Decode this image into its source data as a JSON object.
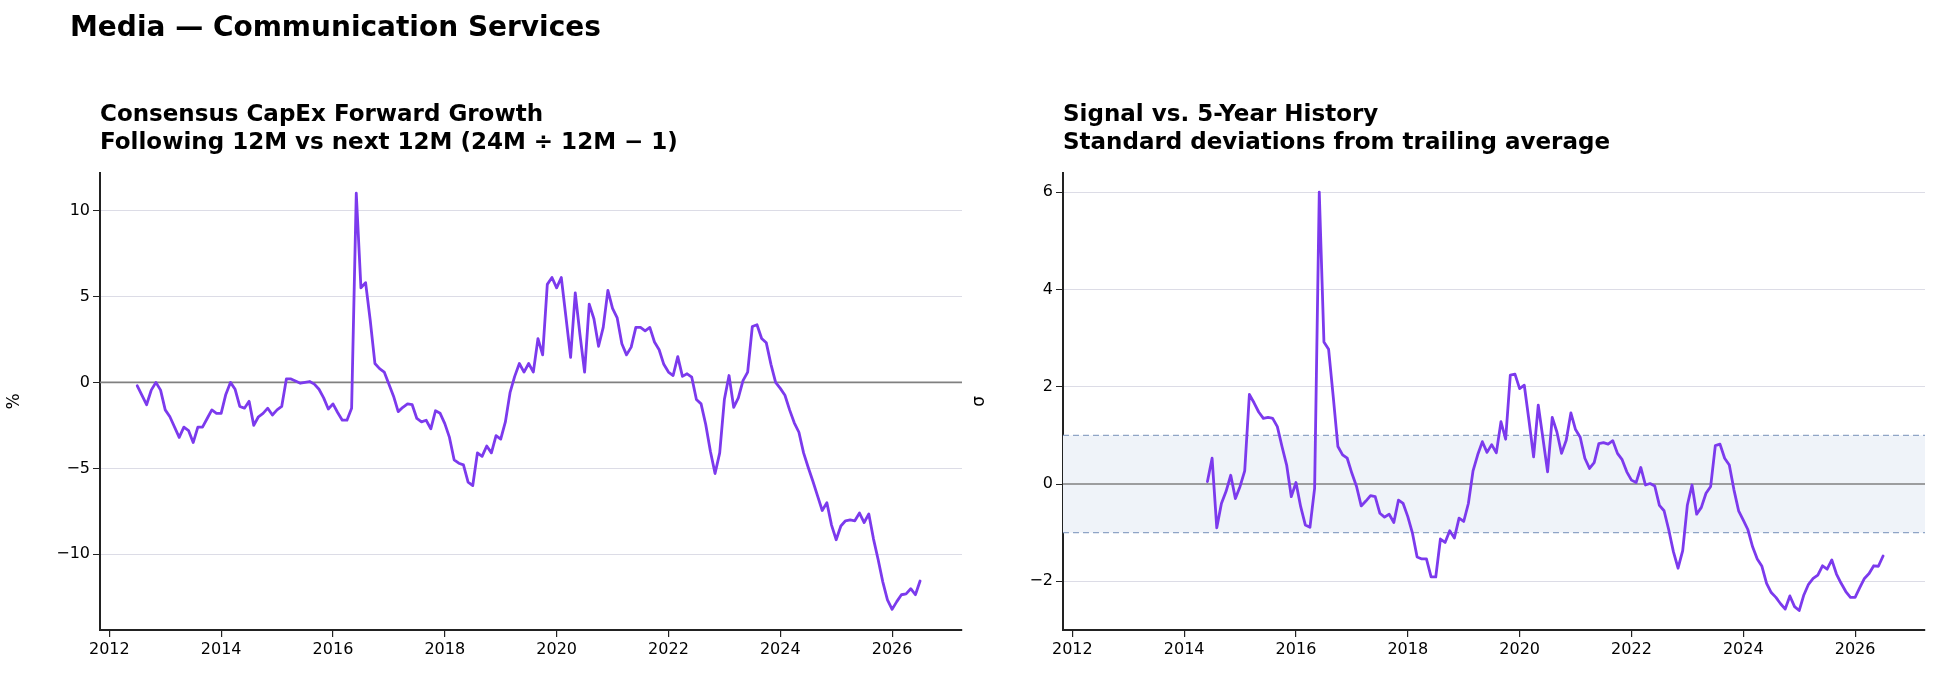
{
  "chart_data": [
    {
      "type": "line",
      "title": "Media — Communication Services",
      "subtitle": "Consensus CapEx Forward Growth\nFollowing 12M vs next 12M (24M ÷ 12M − 1)",
      "ylabel": "%",
      "x": [
        "2012-07",
        "2012-09",
        "2012-10",
        "2012-11",
        "2012-12",
        "2013-01",
        "2013-02",
        "2013-04",
        "2013-05",
        "2013-06",
        "2013-07",
        "2013-08",
        "2013-09",
        "2013-10",
        "2013-11",
        "2013-12",
        "2014-01",
        "2014-02",
        "2014-03",
        "2014-04",
        "2014-05",
        "2014-06",
        "2014-07",
        "2014-08",
        "2014-09",
        "2014-10",
        "2014-11",
        "2014-12",
        "2015-01",
        "2015-02",
        "2015-03",
        "2015-04",
        "2015-06",
        "2015-08",
        "2015-09",
        "2015-10",
        "2015-11",
        "2015-12",
        "2016-01",
        "2016-02",
        "2016-03",
        "2016-04",
        "2016-05",
        "2016-06",
        "2016-07",
        "2016-08",
        "2016-09",
        "2016-10",
        "2016-11",
        "2016-12",
        "2017-02",
        "2017-03",
        "2017-04",
        "2017-05",
        "2017-06",
        "2017-07",
        "2017-08",
        "2017-09",
        "2017-10",
        "2017-11",
        "2017-12",
        "2018-01",
        "2018-02",
        "2018-03",
        "2018-04",
        "2018-05",
        "2018-06",
        "2018-07",
        "2018-08",
        "2018-09",
        "2018-10",
        "2018-11",
        "2018-12",
        "2019-01",
        "2019-02",
        "2019-03",
        "2019-04",
        "2019-05",
        "2019-06",
        "2019-07",
        "2019-08",
        "2019-09",
        "2019-10",
        "2019-11",
        "2019-12",
        "2020-01",
        "2020-02",
        "2020-03",
        "2020-04",
        "2020-05",
        "2020-06",
        "2020-07",
        "2020-08",
        "2020-09",
        "2020-10",
        "2020-11",
        "2020-12",
        "2021-01",
        "2021-02",
        "2021-03",
        "2021-04",
        "2021-05",
        "2021-06",
        "2021-07",
        "2021-08",
        "2021-09",
        "2021-10",
        "2021-11",
        "2021-12",
        "2022-01",
        "2022-02",
        "2022-03",
        "2022-04",
        "2022-05",
        "2022-06",
        "2022-07",
        "2022-08",
        "2022-09",
        "2022-10",
        "2022-11",
        "2022-12",
        "2023-01",
        "2023-02",
        "2023-03",
        "2023-04",
        "2023-05",
        "2023-06",
        "2023-07",
        "2023-08",
        "2023-09",
        "2023-10",
        "2023-11",
        "2023-12",
        "2024-01",
        "2024-02",
        "2024-03",
        "2024-04",
        "2024-05",
        "2024-06",
        "2024-07",
        "2024-08",
        "2024-09",
        "2024-10",
        "2024-11",
        "2024-12",
        "2025-01",
        "2025-02",
        "2025-03",
        "2025-04",
        "2025-05",
        "2025-06",
        "2025-07",
        "2025-08",
        "2025-09",
        "2025-10",
        "2025-11",
        "2025-12",
        "2026-01",
        "2026-02",
        "2026-03",
        "2026-04",
        "2026-05",
        "2026-06",
        "2026-07"
      ],
      "series": [
        {
          "color": "#7c3aed",
          "values": [
            -0.2,
            -1.3,
            -0.45,
            0,
            -0.45,
            -1.6,
            -2.0,
            -3.2,
            -2.6,
            -2.8,
            -3.5,
            -2.6,
            -2.6,
            -2.1,
            -1.6,
            -1.8,
            -1.8,
            -0.7,
            0,
            -0.4,
            -1.4,
            -1.5,
            -1.1,
            -2.5,
            -2.0,
            -1.8,
            -1.5,
            -1.9,
            -1.6,
            -1.4,
            0.2,
            0.2,
            -0.05,
            0.05,
            -0.1,
            -0.4,
            -0.9,
            -1.55,
            -1.25,
            -1.75,
            -2.2,
            -2.2,
            -1.5,
            11.0,
            5.5,
            5.8,
            3.6,
            1.1,
            0.8,
            0.6,
            -0.8,
            -1.7,
            -1.45,
            -1.25,
            -1.3,
            -2.1,
            -2.3,
            -2.2,
            -2.7,
            -1.65,
            -1.8,
            -2.4,
            -3.2,
            -4.5,
            -4.7,
            -4.8,
            -5.8,
            -6.0,
            -4.1,
            -4.3,
            -3.7,
            -4.1,
            -3.1,
            -3.3,
            -2.3,
            -0.6,
            0.35,
            1.1,
            0.6,
            1.1,
            0.6,
            2.55,
            1.6,
            5.7,
            6.1,
            5.5,
            6.1,
            3.8,
            1.45,
            5.2,
            2.8,
            0.6,
            4.55,
            3.7,
            2.1,
            3.2,
            5.35,
            4.3,
            3.75,
            2.25,
            1.6,
            2.05,
            3.2,
            3.2,
            3.0,
            3.2,
            2.35,
            1.9,
            1.05,
            0.6,
            0.4,
            1.5,
            0.35,
            0.5,
            0.3,
            -1.0,
            -1.25,
            -2.45,
            -4.0,
            -5.3,
            -4.1,
            -1.0,
            0.4,
            -1.45,
            -0.9,
            0.1,
            0.6,
            3.25,
            3.35,
            2.55,
            2.3,
            1.05,
            0,
            -0.35,
            -0.75,
            -1.6,
            -2.35,
            -2.9,
            -4.1,
            -4.95,
            -5.75,
            -6.6,
            -7.45,
            -7.0,
            -8.3,
            -9.15,
            -8.35,
            -8.05,
            -8.0,
            -8.05,
            -7.6,
            -8.15,
            -7.65,
            -9.1,
            -10.3,
            -11.6,
            -12.65,
            -13.2,
            -12.75,
            -12.35,
            -12.3,
            -12.0,
            -12.35,
            -11.55
          ]
        }
      ],
      "xlim": [
        "2011-11",
        "2027-04"
      ],
      "xticks": [
        "2012",
        "2014",
        "2016",
        "2018",
        "2020",
        "2022",
        "2024",
        "2026"
      ],
      "ylim": [
        -14.4,
        12.2
      ],
      "yticks": [
        {
          "value": -10,
          "label": "−10"
        },
        {
          "value": -5,
          "label": "−5"
        },
        0,
        5,
        10
      ],
      "grid": "y",
      "marker": "none",
      "line_style": "solid",
      "ref_lines": [
        {
          "axis": "y",
          "value": 0,
          "color": "#808080"
        }
      ]
    },
    {
      "type": "line",
      "subtitle": "Signal vs. 5-Year History\nStandard deviations from trailing average",
      "ylabel": "σ",
      "x": [
        "2014-06",
        "2014-07",
        "2014-08",
        "2014-09",
        "2014-10",
        "2014-11",
        "2014-12",
        "2015-01",
        "2015-02",
        "2015-03",
        "2015-04",
        "2015-05",
        "2015-06",
        "2015-07",
        "2015-08",
        "2015-09",
        "2015-10",
        "2015-11",
        "2015-12",
        "2016-01",
        "2016-02",
        "2016-03",
        "2016-04",
        "2016-05",
        "2016-06",
        "2016-07",
        "2016-08",
        "2016-09",
        "2016-10",
        "2016-11",
        "2016-12",
        "2017-01",
        "2017-02",
        "2017-03",
        "2017-04",
        "2017-05",
        "2017-06",
        "2017-07",
        "2017-08",
        "2017-09",
        "2017-10",
        "2017-11",
        "2017-12",
        "2018-01",
        "2018-02",
        "2018-03",
        "2018-04",
        "2018-05",
        "2018-06",
        "2018-07",
        "2018-08",
        "2018-09",
        "2018-10",
        "2018-11",
        "2018-12",
        "2019-01",
        "2019-02",
        "2019-03",
        "2019-04",
        "2019-05",
        "2019-06",
        "2019-07",
        "2019-08",
        "2019-09",
        "2019-10",
        "2019-11",
        "2019-12",
        "2020-01",
        "2020-02",
        "2020-03",
        "2020-04",
        "2020-05",
        "2020-06",
        "2020-07",
        "2020-08",
        "2020-09",
        "2020-10",
        "2020-11",
        "2020-12",
        "2021-01",
        "2021-02",
        "2021-03",
        "2021-04",
        "2021-05",
        "2021-06",
        "2021-07",
        "2021-08",
        "2021-09",
        "2021-10",
        "2021-11",
        "2021-12",
        "2022-01",
        "2022-02",
        "2022-03",
        "2022-04",
        "2022-05",
        "2022-06",
        "2022-07",
        "2022-08",
        "2022-09",
        "2022-10",
        "2022-11",
        "2022-12",
        "2023-01",
        "2023-02",
        "2023-03",
        "2023-04",
        "2023-05",
        "2023-06",
        "2023-07",
        "2023-08",
        "2023-09",
        "2023-10",
        "2023-11",
        "2023-12",
        "2024-01",
        "2024-02",
        "2024-03",
        "2024-04",
        "2024-05",
        "2024-06",
        "2024-07",
        "2024-08",
        "2024-09",
        "2024-10",
        "2024-11",
        "2024-12",
        "2025-01",
        "2025-02",
        "2025-03",
        "2025-04",
        "2025-05",
        "2025-06",
        "2025-07",
        "2025-08",
        "2025-09",
        "2025-10",
        "2025-11",
        "2025-12",
        "2026-01",
        "2026-02",
        "2026-03",
        "2026-04",
        "2026-05",
        "2026-06",
        "2026-07"
      ],
      "series": [
        {
          "color": "#7c3aed",
          "values": [
            0.05,
            0.53,
            -0.9,
            -0.4,
            -0.15,
            0.18,
            -0.3,
            -0.05,
            0.27,
            1.84,
            1.67,
            1.48,
            1.35,
            1.37,
            1.35,
            1.18,
            0.77,
            0.39,
            -0.26,
            0.03,
            -0.46,
            -0.84,
            -0.89,
            -0.09,
            6.0,
            2.92,
            2.77,
            1.79,
            0.77,
            0.6,
            0.53,
            0.22,
            -0.05,
            -0.45,
            -0.35,
            -0.24,
            -0.26,
            -0.6,
            -0.68,
            -0.62,
            -0.79,
            -0.33,
            -0.4,
            -0.67,
            -1.01,
            -1.5,
            -1.54,
            -1.54,
            -1.91,
            -1.91,
            -1.13,
            -1.2,
            -0.96,
            -1.11,
            -0.7,
            -0.77,
            -0.4,
            0.27,
            0.6,
            0.87,
            0.65,
            0.81,
            0.64,
            1.28,
            0.92,
            2.24,
            2.26,
            1.96,
            2.03,
            1.31,
            0.56,
            1.62,
            0.94,
            0.25,
            1.37,
            1.07,
            0.63,
            0.9,
            1.46,
            1.12,
            0.96,
            0.53,
            0.32,
            0.44,
            0.83,
            0.85,
            0.82,
            0.89,
            0.63,
            0.5,
            0.25,
            0.08,
            0.03,
            0.34,
            -0.02,
            0.01,
            -0.04,
            -0.44,
            -0.55,
            -0.94,
            -1.39,
            -1.73,
            -1.37,
            -0.43,
            -0.02,
            -0.62,
            -0.48,
            -0.19,
            -0.05,
            0.79,
            0.82,
            0.53,
            0.39,
            -0.12,
            -0.55,
            -0.74,
            -0.94,
            -1.29,
            -1.54,
            -1.69,
            -2.04,
            -2.23,
            -2.33,
            -2.46,
            -2.57,
            -2.3,
            -2.52,
            -2.6,
            -2.28,
            -2.06,
            -1.94,
            -1.87,
            -1.68,
            -1.75,
            -1.56,
            -1.85,
            -2.04,
            -2.21,
            -2.33,
            -2.33,
            -2.13,
            -1.94,
            -1.84,
            -1.68,
            -1.69,
            -1.48
          ]
        }
      ],
      "xlim": [
        "2011-11",
        "2027-04"
      ],
      "xticks": [
        "2012",
        "2014",
        "2016",
        "2018",
        "2020",
        "2022",
        "2024",
        "2026"
      ],
      "ylim": [
        -3.0,
        6.4
      ],
      "yticks": [
        {
          "value": -2,
          "label": "−2"
        },
        0,
        2,
        4,
        6
      ],
      "grid": "y",
      "marker": "none",
      "line_style": "solid",
      "bands": [
        {
          "axis": "y",
          "from": -1,
          "to": 1,
          "color": "#eff3f9"
        }
      ],
      "ref_lines": [
        {
          "axis": "y",
          "value": 0,
          "color": "#808080"
        },
        {
          "axis": "y",
          "value": 1,
          "color": "#8fa5c6",
          "line_style": "dashed"
        },
        {
          "axis": "y",
          "value": -1,
          "color": "#8fa5c6",
          "line_style": "dashed"
        }
      ]
    }
  ]
}
